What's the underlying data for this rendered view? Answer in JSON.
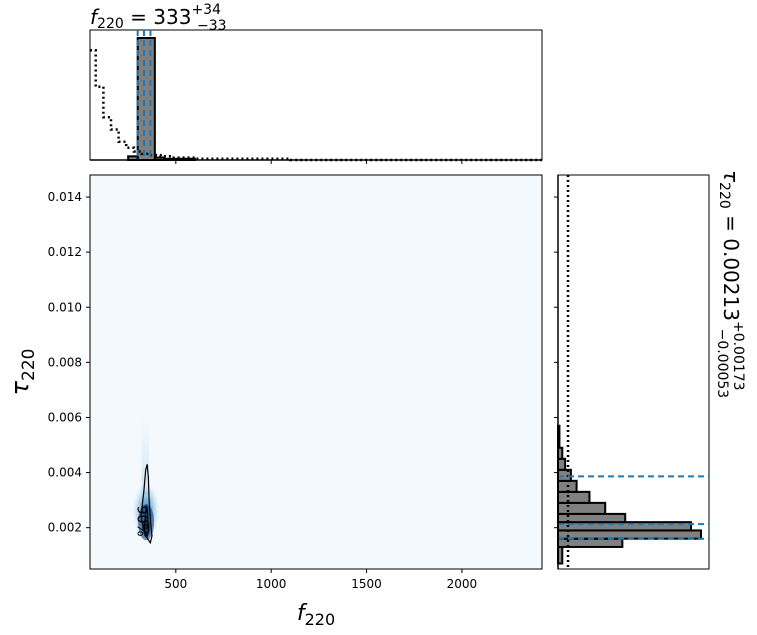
{
  "chart_data": {
    "type": "corner",
    "panels": {
      "f_marginal": {
        "type": "histogram",
        "title_param": "f",
        "title_sub": "220",
        "title_value": " = 333",
        "title_upper": "+34",
        "title_lower": "−33",
        "xlim": [
          50,
          2420
        ],
        "prior_dotted": [
          {
            "x0": 50,
            "x1": 80,
            "y": 0.9
          },
          {
            "x0": 80,
            "x1": 120,
            "y": 0.6
          },
          {
            "x0": 120,
            "x1": 160,
            "y": 0.35
          },
          {
            "x0": 160,
            "x1": 200,
            "y": 0.25
          },
          {
            "x0": 200,
            "x1": 240,
            "y": 0.15
          },
          {
            "x0": 240,
            "x1": 280,
            "y": 0.1
          },
          {
            "x0": 280,
            "x1": 320,
            "y": 0.07
          },
          {
            "x0": 320,
            "x1": 370,
            "y": 0.05
          },
          {
            "x0": 370,
            "x1": 420,
            "y": 0.04
          },
          {
            "x0": 420,
            "x1": 480,
            "y": 0.03
          },
          {
            "x0": 480,
            "x1": 600,
            "y": 0.02
          },
          {
            "x0": 600,
            "x1": 1100,
            "y": 0.01
          },
          {
            "x0": 1100,
            "x1": 2420,
            "y": 0.0
          }
        ],
        "posterior_bars": [
          {
            "x0": 250,
            "x1": 300,
            "y": 0.03
          },
          {
            "x0": 300,
            "x1": 390,
            "y": 1.0
          },
          {
            "x0": 390,
            "x1": 440,
            "y": 0.02
          },
          {
            "x0": 440,
            "x1": 600,
            "y": 0.01
          }
        ],
        "quantile_lines": [
          300,
          333,
          367
        ]
      },
      "tau_marginal": {
        "type": "histogram",
        "orientation": "horizontal",
        "label_param": "τ",
        "label_sub": "220",
        "label_value": " = 0.00213",
        "label_upper": "+0.00173",
        "label_lower": "−0.00053",
        "ylim": [
          0.0005,
          0.0148
        ],
        "prior_dotted_x": 0.07,
        "posterior_bars": [
          {
            "y0": 0.0007,
            "y1": 0.0013,
            "x": 0.03
          },
          {
            "y0": 0.0013,
            "y1": 0.0016,
            "x": 0.45
          },
          {
            "y0": 0.0016,
            "y1": 0.0019,
            "x": 1.0
          },
          {
            "y0": 0.0019,
            "y1": 0.0022,
            "x": 0.93
          },
          {
            "y0": 0.0022,
            "y1": 0.0025,
            "x": 0.47
          },
          {
            "y0": 0.0025,
            "y1": 0.0029,
            "x": 0.33
          },
          {
            "y0": 0.0029,
            "y1": 0.0033,
            "x": 0.22
          },
          {
            "y0": 0.0033,
            "y1": 0.0037,
            "x": 0.13
          },
          {
            "y0": 0.0037,
            "y1": 0.0041,
            "x": 0.09
          },
          {
            "y0": 0.0041,
            "y1": 0.0045,
            "x": 0.05
          },
          {
            "y0": 0.0045,
            "y1": 0.0049,
            "x": 0.03
          },
          {
            "y0": 0.0049,
            "y1": 0.0057,
            "x": 0.01
          }
        ],
        "quantile_lines": [
          0.0016,
          0.00213,
          0.00386
        ]
      },
      "joint": {
        "type": "density",
        "xlabel_param": "f",
        "xlabel_sub": "220",
        "ylabel_param": "τ",
        "ylabel_sub": "220",
        "xlim": [
          50,
          2420
        ],
        "ylim": [
          0.0005,
          0.0148
        ],
        "xticks": [
          500,
          1000,
          1500,
          2000
        ],
        "xtick_labels": [
          "500",
          "1000",
          "1500",
          "2000"
        ],
        "yticks": [
          0.002,
          0.004,
          0.006,
          0.008,
          0.01,
          0.012,
          0.014
        ],
        "ytick_labels": [
          "0.002",
          "0.004",
          "0.006",
          "0.008",
          "0.010",
          "0.012",
          "0.014"
        ],
        "contour_label": "90%",
        "contour_90": [
          [
            318,
            0.00245
          ],
          [
            332,
            0.0033
          ],
          [
            342,
            0.0041
          ],
          [
            350,
            0.0043
          ],
          [
            356,
            0.0038
          ],
          [
            360,
            0.003
          ],
          [
            368,
            0.0022
          ],
          [
            375,
            0.0017
          ],
          [
            366,
            0.00145
          ],
          [
            352,
            0.0016
          ],
          [
            340,
            0.0018
          ],
          [
            326,
            0.0021
          ]
        ],
        "contour_50": [
          [
            335,
            0.0019
          ],
          [
            340,
            0.0024
          ],
          [
            346,
            0.0028
          ],
          [
            352,
            0.0025
          ],
          [
            356,
            0.0019
          ],
          [
            348,
            0.00165
          ],
          [
            340,
            0.0017
          ]
        ]
      }
    },
    "colors": {
      "posterior_fill": "#808080",
      "quantile_line": "#1f77b4",
      "density_low": "#f4f9fe",
      "density_high": "#08306b"
    }
  }
}
